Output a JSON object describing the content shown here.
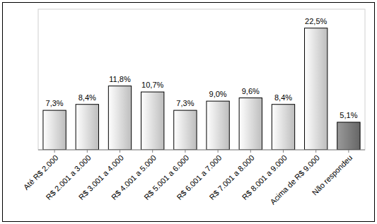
{
  "chart_data": {
    "type": "bar",
    "categories": [
      "Até R$ 2.000",
      "R$ 2.001 a 3.000",
      "R$ 3.001 a 4.000",
      "R$ 4.001 a 5.000",
      "R$ 5.001 a 6.000",
      "R$ 6.001 a 7.000",
      "R$ 7.001 a 8.000",
      "R$ 8.001 a 9.000",
      "Acima de R$ 9.000",
      "Não respondeu"
    ],
    "values": [
      7.3,
      8.4,
      11.8,
      10.7,
      7.3,
      9.0,
      9.6,
      8.4,
      22.5,
      5.1
    ],
    "value_labels": [
      "7,3%",
      "8,4%",
      "11,8%",
      "10,7%",
      "7,3%",
      "9,0%",
      "9,6%",
      "8,4%",
      "22,5%",
      "5,1%"
    ],
    "colors": [
      "#e4e4e4",
      "#e4e4e4",
      "#e4e4e4",
      "#e4e4e4",
      "#e4e4e4",
      "#e4e4e4",
      "#e4e4e4",
      "#e4e4e4",
      "#e4e4e4",
      "#808080"
    ],
    "ylim": [
      0,
      26
    ],
    "data_labels": true,
    "tick_labels": "x",
    "grid": false
  }
}
